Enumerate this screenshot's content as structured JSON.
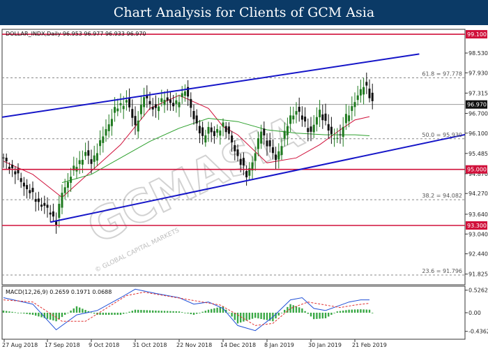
{
  "banner": {
    "title": "Chart Analysis for Clients of GCM Asia"
  },
  "watermark": {
    "text": "GCMASIA",
    "subtext": "© GLOBAL CAPITAL MARKETS"
  },
  "colors": {
    "banner_bg": "#0b3a66",
    "bull": "#1f7a1f",
    "bear": "#111111",
    "trend": "#1515c8",
    "resistance": "#d0103a",
    "ma_fast": "#d0103a",
    "ma_slow": "#2ca02c",
    "macd": "#1f4fd6",
    "signal": "#e03030",
    "hist": "#3aa845",
    "price_tag": "#111111"
  },
  "chart_data": [
    {
      "type": "candlestick",
      "header": "DOLLAR_INDX,Daily  96.953 96.977 96.933 96.970",
      "ylim": [
        91.5,
        99.25
      ],
      "yticks": [
        91.825,
        92.44,
        93.04,
        93.64,
        94.27,
        94.87,
        95.485,
        96.1,
        96.7,
        97.315,
        97.93,
        98.53
      ],
      "ytick_labels": [
        "91.825",
        "92.440",
        "93.040",
        "93.640",
        "94.270",
        "94.870",
        "95.485",
        "96.100",
        "96.700",
        "97.315",
        "97.930",
        "98.530"
      ],
      "xticks": [
        0,
        15,
        30,
        45,
        60,
        75,
        90,
        105,
        120
      ],
      "x_labels": [
        "27 Aug 2018",
        "17 Sep 2018",
        "9 Oct 2018",
        "31 Oct 2018",
        "22 Nov 2018",
        "14 Dec 2018",
        "8 Jan 2019",
        "30 Jan 2019",
        "21 Feb 2019"
      ],
      "current_price": {
        "value": 96.97,
        "label": "96.970"
      },
      "horizontal_lines": [
        {
          "value": 99.1,
          "label": "99.100"
        },
        {
          "value": 95.0,
          "label": "95.000"
        },
        {
          "value": 93.3,
          "label": "93.300"
        }
      ],
      "fib_levels": [
        {
          "value": 97.778,
          "label": "61.8 = 97.778"
        },
        {
          "value": 95.93,
          "label": "50.0 = 95.930"
        },
        {
          "value": 94.082,
          "label": "38.2 = 94.082"
        },
        {
          "value": 91.796,
          "label": "23.6 = 91.796"
        }
      ],
      "trendlines": [
        {
          "x": [
            -3,
            142
          ],
          "y": [
            96.55,
            98.5
          ]
        },
        {
          "x": [
            16,
            160
          ],
          "y": [
            93.4,
            96.1
          ]
        }
      ],
      "series": [
        {
          "name": "",
          "role": "ma_fast",
          "x": [
            0,
            10,
            20,
            30,
            40,
            50,
            60,
            70,
            75,
            80,
            90,
            100,
            108,
            115,
            120,
            125
          ],
          "y": [
            95.25,
            94.85,
            94.15,
            94.95,
            95.75,
            96.85,
            97.25,
            96.85,
            96.3,
            96.05,
            95.2,
            95.35,
            95.75,
            96.2,
            96.5,
            96.6
          ]
        },
        {
          "name": "",
          "role": "ma_slow",
          "x": [
            20,
            30,
            40,
            50,
            60,
            70,
            80,
            90,
            100,
            110,
            120,
            125
          ],
          "y": [
            94.6,
            94.85,
            95.35,
            95.85,
            96.25,
            96.55,
            96.45,
            96.2,
            96.1,
            96.05,
            96.05,
            96.02
          ]
        }
      ],
      "price_path": {
        "x": [
          0,
          4,
          8,
          12,
          16,
          18,
          20,
          24,
          28,
          30,
          35,
          38,
          42,
          45,
          48,
          52,
          55,
          58,
          62,
          65,
          68,
          70,
          72,
          75,
          78,
          80,
          83,
          86,
          88,
          90,
          93,
          95,
          98,
          100,
          103,
          105,
          108,
          110,
          112,
          115,
          117,
          119,
          121,
          123,
          124,
          125,
          126
        ],
        "y": [
          95.3,
          94.9,
          94.4,
          94.0,
          93.7,
          93.4,
          94.3,
          95.0,
          95.5,
          95.2,
          96.2,
          96.8,
          97.1,
          96.3,
          97.2,
          96.8,
          97.2,
          96.9,
          97.4,
          96.6,
          95.9,
          96.3,
          96.0,
          96.4,
          95.8,
          95.4,
          94.8,
          95.5,
          96.2,
          95.8,
          95.3,
          95.8,
          96.6,
          96.8,
          96.4,
          96.1,
          96.8,
          96.4,
          96.0,
          96.0,
          96.6,
          96.9,
          97.2,
          97.6,
          97.5,
          97.2,
          96.97
        ]
      }
    },
    {
      "type": "macd",
      "header": "MACD(12,26,9) 0.2659 0.1971 0.0688",
      "ylim": [
        -0.62,
        0.62
      ],
      "yticks": [
        0.5262,
        0.0,
        -0.4362
      ],
      "ytick_labels": [
        "0.5262",
        "0.00",
        "-0.4362"
      ],
      "series": [
        {
          "name": "",
          "role": "macd",
          "x": [
            0,
            10,
            18,
            25,
            32,
            40,
            45,
            52,
            60,
            65,
            70,
            75,
            80,
            86,
            92,
            98,
            102,
            106,
            110,
            114,
            118,
            122,
            125
          ],
          "y": [
            0.35,
            0.2,
            -0.4,
            -0.05,
            0.05,
            0.35,
            0.55,
            0.45,
            0.35,
            0.2,
            0.25,
            0.1,
            -0.3,
            -0.42,
            -0.1,
            0.3,
            0.35,
            0.1,
            0.05,
            0.15,
            0.25,
            0.3,
            0.3
          ]
        },
        {
          "name": "",
          "role": "signal",
          "x": [
            0,
            10,
            20,
            28,
            35,
            42,
            48,
            55,
            62,
            68,
            74,
            80,
            86,
            92,
            98,
            104,
            110,
            115,
            120,
            125
          ],
          "y": [
            0.3,
            0.25,
            -0.2,
            -0.2,
            0.1,
            0.4,
            0.48,
            0.4,
            0.32,
            0.25,
            0.18,
            -0.05,
            -0.3,
            -0.25,
            0.1,
            0.25,
            0.18,
            0.12,
            0.18,
            0.22
          ]
        },
        {
          "name": "",
          "role": "hist",
          "x": [
            0,
            10,
            18,
            25,
            32,
            40,
            45,
            52,
            60,
            65,
            70,
            75,
            80,
            86,
            92,
            98,
            102,
            106,
            110,
            114,
            118,
            122,
            125
          ],
          "y": [
            0.05,
            -0.05,
            -0.2,
            0.15,
            -0.05,
            -0.05,
            0.07,
            0.05,
            0.03,
            -0.05,
            0.07,
            0.15,
            -0.25,
            -0.12,
            -0.2,
            0.2,
            0.1,
            -0.15,
            -0.13,
            0.03,
            0.07,
            0.08,
            0.07
          ]
        }
      ]
    }
  ]
}
